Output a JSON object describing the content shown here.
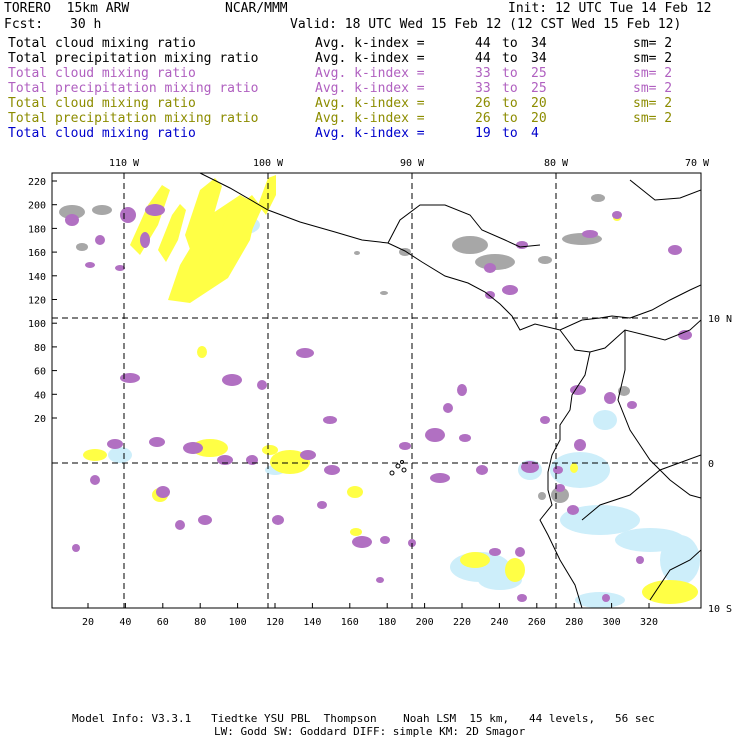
{
  "header": {
    "model": "TORERO  15km ARW",
    "org": "NCAR/MMM",
    "init": "Init: 12 UTC Tue 14 Feb 12",
    "fcst_label": "Fcst:",
    "fcst_value": "30 h",
    "valid": "Valid: 18 UTC Wed 15 Feb 12 (12 CST Wed 15 Feb 12)"
  },
  "legend": [
    {
      "field": "Total cloud mixing ratio",
      "kindex": "Avg. k-index =",
      "from": "44",
      "to_word": "to",
      "to": "34",
      "sm": "sm= 2",
      "color": "#000000"
    },
    {
      "field": "Total precipitation mixing ratio",
      "kindex": "Avg. k-index =",
      "from": "44",
      "to_word": "to",
      "to": "34",
      "sm": "sm= 2",
      "color": "#000000"
    },
    {
      "field": "Total cloud mixing ratio",
      "kindex": "Avg. k-index =",
      "from": "33",
      "to_word": "to",
      "to": "25",
      "sm": "sm= 2",
      "color": "#b060c0"
    },
    {
      "field": "Total precipitation mixing ratio",
      "kindex": "Avg. k-index =",
      "from": "33",
      "to_word": "to",
      "to": "25",
      "sm": "sm= 2",
      "color": "#b060c0"
    },
    {
      "field": "Total cloud mixing ratio",
      "kindex": "Avg. k-index =",
      "from": "26",
      "to_word": "to",
      "to": "20",
      "sm": "sm= 2",
      "color": "#8c8c00"
    },
    {
      "field": "Total precipitation mixing ratio",
      "kindex": "Avg. k-index =",
      "from": "26",
      "to_word": "to",
      "to": "20",
      "sm": "sm= 2",
      "color": "#8c8c00"
    },
    {
      "field": "Total cloud mixing ratio",
      "kindex": "Avg. k-index =",
      "from": "19",
      "to_word": "to",
      "to": "4",
      "sm": "",
      "color": "#0000cc"
    }
  ],
  "map": {
    "lon_labels": [
      "110 W",
      "100 W",
      "90 W",
      "80 W",
      "70 W"
    ],
    "lat_labels": [
      "10 N",
      "0",
      "10 S"
    ],
    "y_ticks": [
      "220",
      "200",
      "180",
      "160",
      "140",
      "120",
      "100",
      "80",
      "60",
      "40",
      "20"
    ],
    "x_ticks": [
      "20",
      "40",
      "60",
      "80",
      "100",
      "120",
      "140",
      "160",
      "180",
      "200",
      "220",
      "240",
      "260",
      "280",
      "300",
      "320"
    ]
  },
  "footer": {
    "line1": "Model Info: V3.3.1   Tiedtke YSU PBL  Thompson    Noah LSM  15 km,   44 levels,   56 sec",
    "line2": "LW: Godd SW: Goddard DIFF: simple KM: 2D Smagor"
  },
  "colors": {
    "gray": "#a0a0a0",
    "purple": "#b070c0",
    "yellow": "#ffff40",
    "lightblue": "#c8ecf8"
  }
}
